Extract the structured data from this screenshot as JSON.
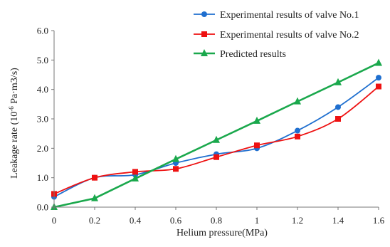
{
  "chart_data": {
    "type": "line",
    "xlabel": "Helium pressure(MPa)",
    "ylabel": {
      "prefix": "Leakage rate (10",
      "exponent": "-6",
      "suffix": " Pa·m3/s)"
    },
    "xlim": [
      0,
      1.6
    ],
    "ylim": [
      0,
      6
    ],
    "x_ticks": [
      0,
      0.2,
      0.4,
      0.6,
      0.8,
      1,
      1.2,
      1.4,
      1.6
    ],
    "x_tick_labels": [
      "0",
      "0.2",
      "0.4",
      "0.6",
      "0.8",
      "1",
      "1.2",
      "1.4",
      "1.6"
    ],
    "y_ticks": [
      0,
      1,
      2,
      3,
      4,
      5,
      6
    ],
    "y_tick_labels": [
      "0.0",
      "1.0",
      "2.0",
      "3.0",
      "4.0",
      "5.0",
      "6.0"
    ],
    "grid": false,
    "legend_position": "top-right",
    "series": [
      {
        "name": "Experimental results of valve No.1",
        "color": "#1f6fcf",
        "marker": "circle",
        "smooth": true,
        "x": [
          0,
          0.2,
          0.4,
          0.6,
          0.8,
          1.0,
          1.2,
          1.4,
          1.6
        ],
        "y": [
          0.35,
          1.0,
          1.1,
          1.5,
          1.8,
          2.0,
          2.6,
          3.4,
          4.4
        ]
      },
      {
        "name": "Experimental results of valve No.2",
        "color": "#ee1111",
        "marker": "square",
        "smooth": true,
        "x": [
          0,
          0.2,
          0.4,
          0.6,
          0.8,
          1.0,
          1.2,
          1.4,
          1.6
        ],
        "y": [
          0.45,
          1.0,
          1.2,
          1.3,
          1.7,
          2.1,
          2.4,
          3.0,
          4.1
        ]
      },
      {
        "name": "Predicted results",
        "color": "#1aa84c",
        "marker": "triangle",
        "smooth": false,
        "x": [
          0,
          0.2,
          0.4,
          0.6,
          0.8,
          1.0,
          1.2,
          1.4,
          1.6
        ],
        "y": [
          0.0,
          0.3,
          0.97,
          1.63,
          2.28,
          2.93,
          3.59,
          4.24,
          4.9
        ]
      }
    ]
  }
}
